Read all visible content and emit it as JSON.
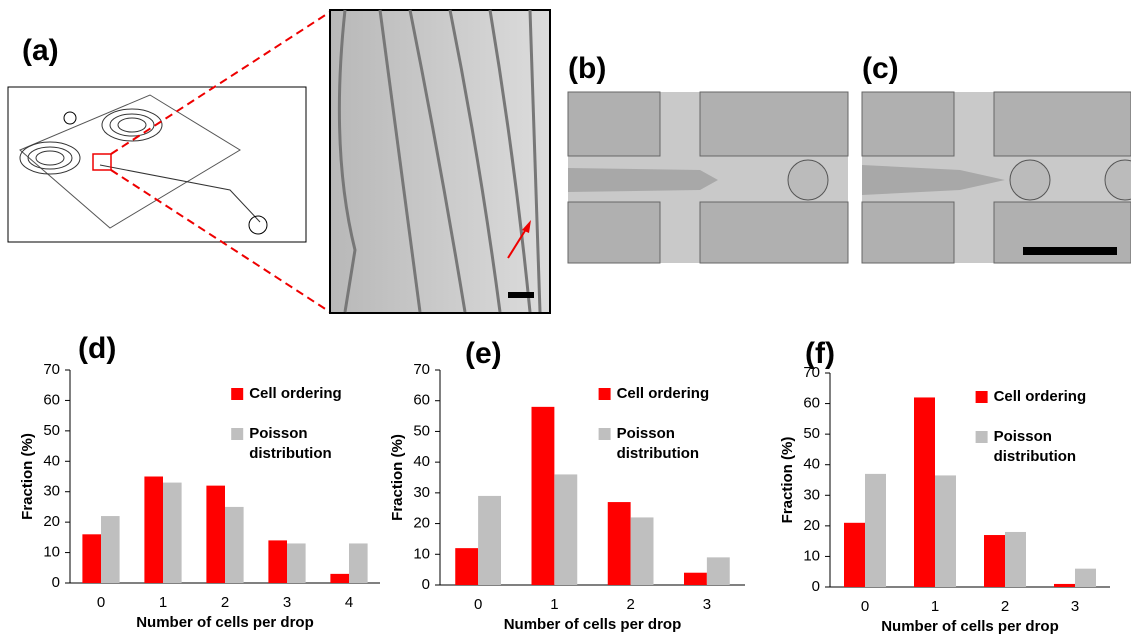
{
  "panels": {
    "a": "(a)",
    "b": "(b)",
    "c": "(c)"
  },
  "chart_data": [
    {
      "type": "bar",
      "title": "(d)",
      "x_label": "Number of cells per drop",
      "y_label": "Fraction (%)",
      "categories": [
        "0",
        "1",
        "2",
        "3",
        "4"
      ],
      "series": [
        {
          "name": "Cell ordering",
          "color": "#ff0000",
          "values": [
            16,
            35,
            32,
            14,
            3
          ]
        },
        {
          "name": "Poisson distribution",
          "color": "#bfbfbf",
          "values": [
            22,
            33,
            25,
            13,
            13
          ]
        }
      ],
      "ylim": [
        0,
        70
      ],
      "yticks": [
        0,
        10,
        20,
        30,
        40,
        50,
        60,
        70
      ]
    },
    {
      "type": "bar",
      "title": "(e)",
      "x_label": "Number of cells per drop",
      "y_label": "Fraction (%)",
      "categories": [
        "0",
        "1",
        "2",
        "3"
      ],
      "series": [
        {
          "name": "Cell ordering",
          "color": "#ff0000",
          "values": [
            12,
            58,
            27,
            4
          ]
        },
        {
          "name": "Poisson distribution",
          "color": "#bfbfbf",
          "values": [
            29,
            36,
            22,
            9
          ]
        }
      ],
      "ylim": [
        0,
        70
      ],
      "yticks": [
        0,
        10,
        20,
        30,
        40,
        50,
        60,
        70
      ]
    },
    {
      "type": "bar",
      "title": "(f)",
      "x_label": "Number of cells per drop",
      "y_label": "Fraction (%)",
      "categories": [
        "0",
        "1",
        "2",
        "3"
      ],
      "series": [
        {
          "name": "Cell ordering",
          "color": "#ff0000",
          "values": [
            21,
            62,
            17,
            1
          ]
        },
        {
          "name": "Poisson distribution",
          "color": "#bfbfbf",
          "values": [
            37,
            36.5,
            18,
            6
          ]
        }
      ],
      "ylim": [
        0,
        70
      ],
      "yticks": [
        0,
        10,
        20,
        30,
        40,
        50,
        60,
        70
      ]
    }
  ]
}
